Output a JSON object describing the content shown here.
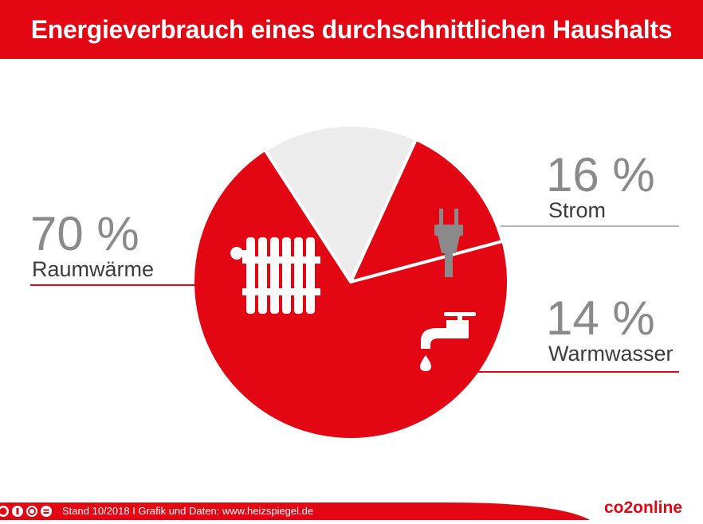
{
  "title": "Energieverbrauch eines durchschnittlichen Haushalts",
  "footer": {
    "text": "Stand 10/2018   I   Grafik und Daten: www.heizspiegel.de",
    "brand_a": "co",
    "brand_b": "2online",
    "license_icons": [
      "cc-icon",
      "by-icon",
      "nc-icon",
      "nd-icon"
    ]
  },
  "colors": {
    "accent": "#e30613",
    "slice_light": "#ececec",
    "icon_gray": "#8a8a8a",
    "label_line_gray": "#9a9a9a"
  },
  "chart_data": {
    "type": "pie",
    "title": "Energieverbrauch eines durchschnittlichen Haushalts",
    "unit": "%",
    "slices": [
      {
        "name": "Raumwärme",
        "value": 70,
        "label": "70 %",
        "color": "#e30613",
        "icon": "radiator-icon"
      },
      {
        "name": "Strom",
        "value": 16,
        "label": "16 %",
        "color": "#ececec",
        "icon": "plug-icon"
      },
      {
        "name": "Warmwasser",
        "value": 14,
        "label": "14 %",
        "color": "#e30613",
        "icon": "faucet-icon"
      }
    ]
  }
}
